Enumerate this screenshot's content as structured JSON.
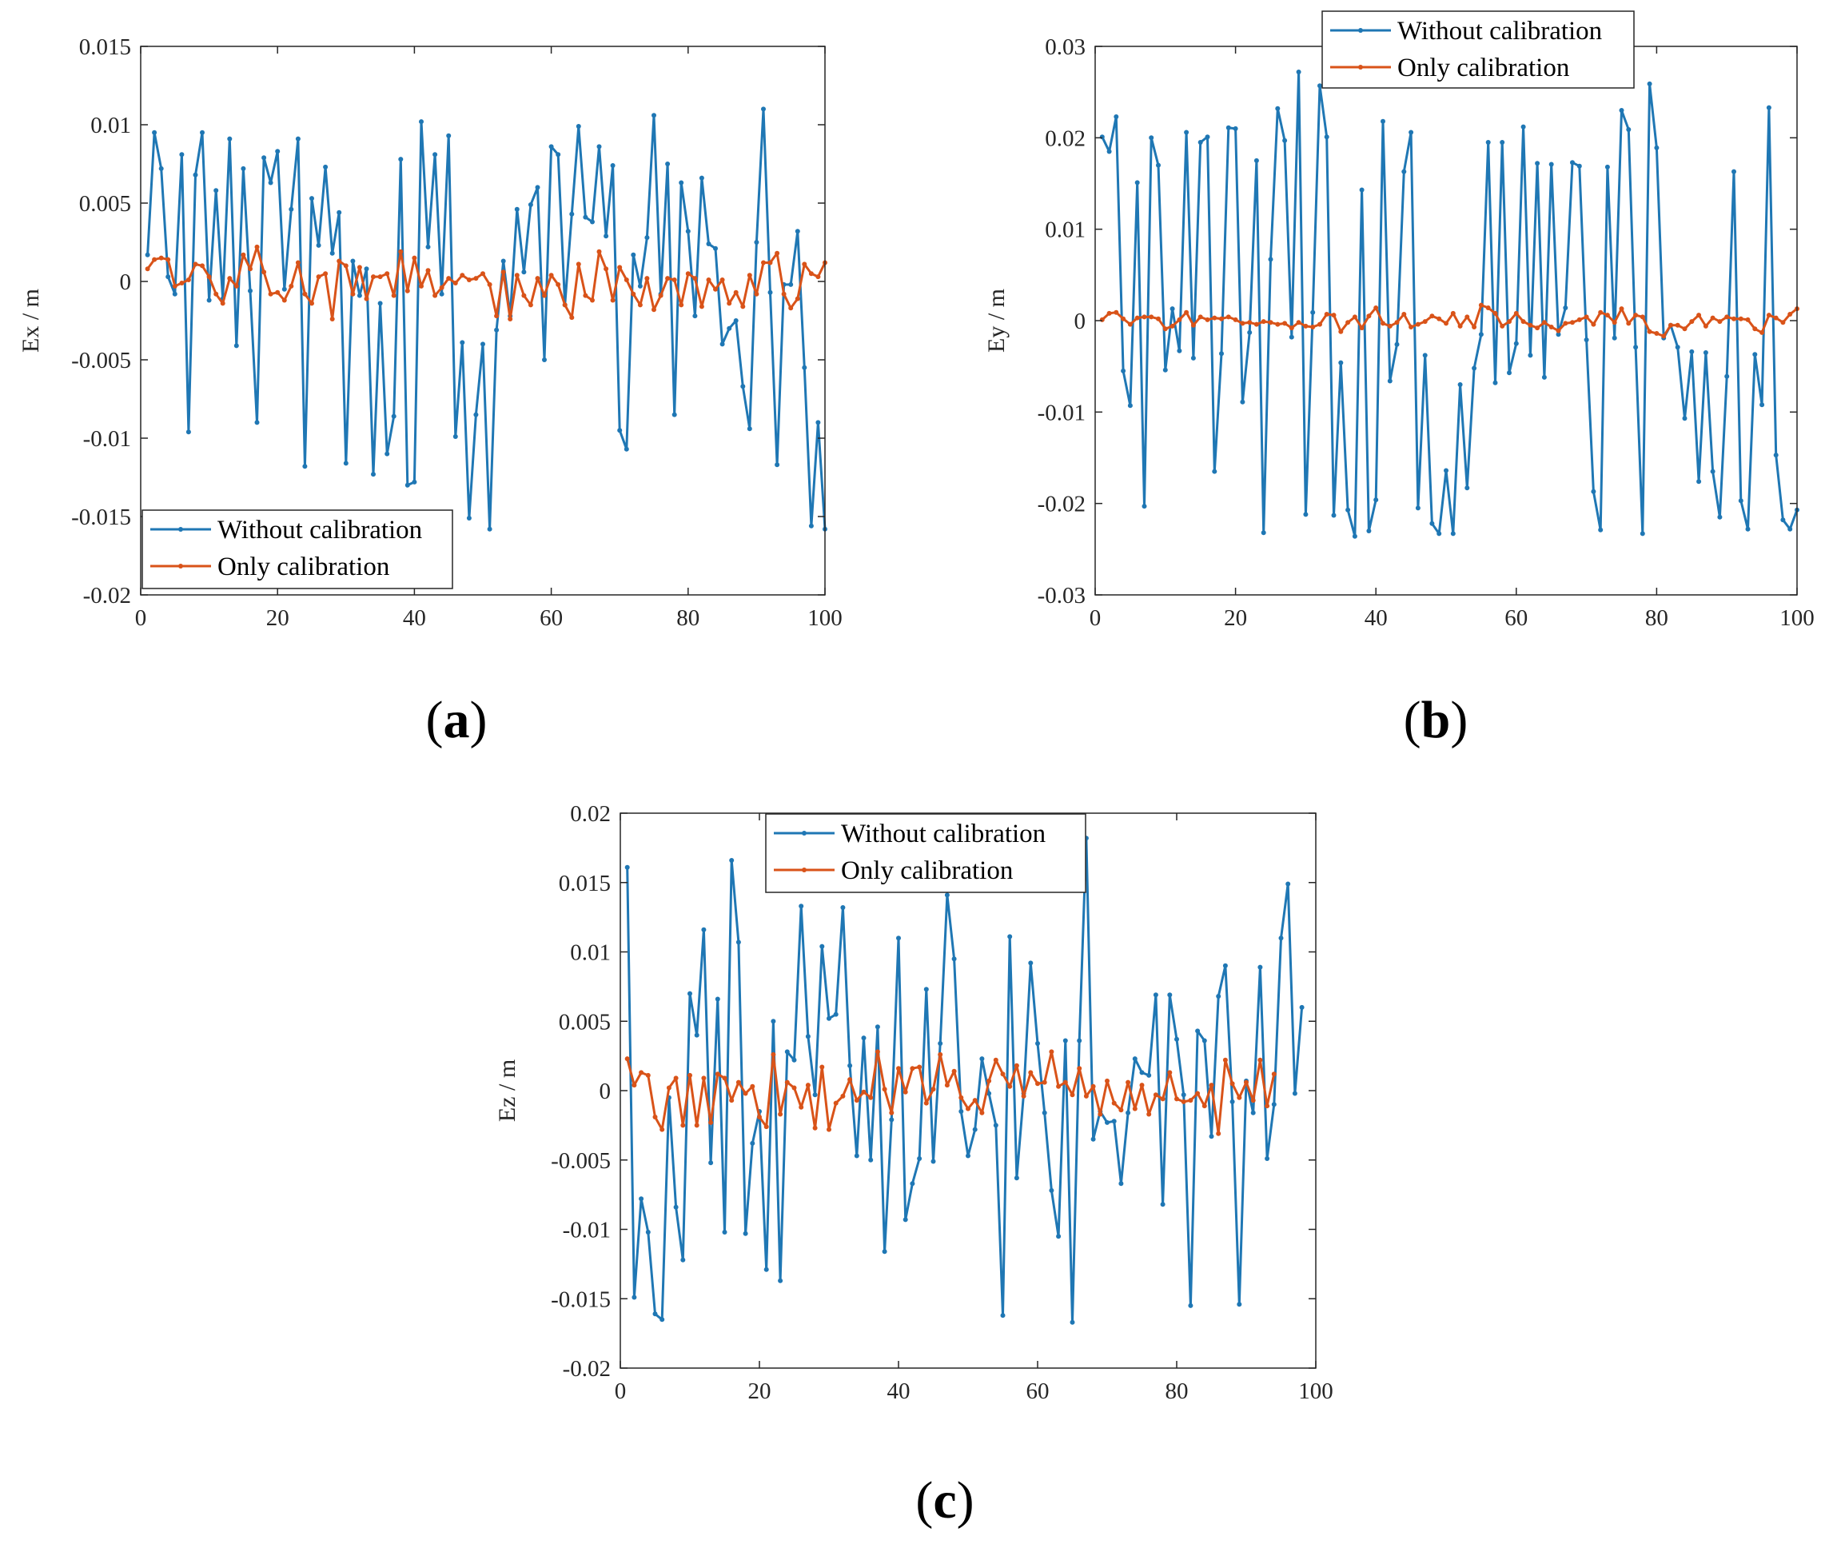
{
  "figure": {
    "panel_labels": [
      "(a)",
      "(b)",
      "(c)"
    ]
  },
  "colors": {
    "without": "#1f77b4",
    "only": "#d95319"
  },
  "chart_data": [
    {
      "type": "line",
      "panel": "(a)",
      "ylabel": "Ex / m",
      "xlim": [
        0,
        100
      ],
      "ylim": [
        -0.02,
        0.015
      ],
      "xticks": [
        0,
        20,
        40,
        60,
        80,
        100
      ],
      "xtick_labels": [
        "0",
        "20",
        "40",
        "60",
        "80",
        "100"
      ],
      "yticks": [
        -0.02,
        -0.015,
        -0.01,
        -0.005,
        0,
        0.005,
        0.01,
        0.015
      ],
      "ytick_labels": [
        "-0.02",
        "-0.015",
        "-0.01",
        "-0.005",
        "0",
        "0.005",
        "0.01",
        "0.015"
      ],
      "legend": {
        "position": "bottom-left",
        "entries": [
          "Without calibration",
          "Only calibration"
        ]
      },
      "series": [
        {
          "name": "Without calibration",
          "values": [
            0.0017,
            0.0095,
            0.0072,
            0.0003,
            -0.0008,
            0.0081,
            -0.0096,
            0.0068,
            0.0095,
            -0.0012,
            0.0058,
            -0.0011,
            0.0091,
            -0.0041,
            0.0072,
            -0.0006,
            -0.009,
            0.0079,
            0.0063,
            0.0083,
            -0.0005,
            0.0046,
            0.0091,
            -0.0118,
            0.0053,
            0.0023,
            0.0073,
            0.0018,
            0.0044,
            -0.0116,
            0.0013,
            -0.0009,
            0.0008,
            -0.0123,
            -0.0014,
            -0.011,
            -0.0086,
            0.0078,
            -0.013,
            -0.0128,
            0.0102,
            0.0022,
            0.0081,
            -0.0008,
            0.0093,
            -0.0099,
            -0.0039,
            -0.0151,
            -0.0085,
            -0.004,
            -0.0158,
            -0.0031,
            0.0013,
            -0.0022,
            0.0046,
            0.0006,
            0.0049,
            0.006,
            -0.005,
            0.0086,
            0.0081,
            -0.0015,
            0.0043,
            0.0099,
            0.0041,
            0.0038,
            0.0086,
            0.0029,
            0.0074,
            -0.0095,
            -0.0107,
            0.0017,
            -0.0003,
            0.0028,
            0.0106,
            -0.0008,
            0.0075,
            -0.0085,
            0.0063,
            0.0032,
            -0.0022,
            0.0066,
            0.0024,
            0.0021,
            -0.004,
            -0.003,
            -0.0025,
            -0.0067,
            -0.0094,
            0.0025,
            0.011,
            -0.0007,
            -0.0117,
            -0.0002,
            -0.0002,
            0.0032,
            -0.0055,
            -0.0156,
            -0.009,
            -0.0158
          ]
        },
        {
          "name": "Only calibration",
          "values": [
            0.0008,
            0.0014,
            0.0015,
            0.0014,
            -0.0003,
            -0.0001,
            0.0001,
            0.0011,
            0.001,
            0.0003,
            -0.0008,
            -0.0014,
            0.0002,
            -0.0003,
            0.0017,
            0.0008,
            0.0022,
            0.0006,
            -0.0008,
            -0.0007,
            -0.0012,
            -0.0003,
            0.0012,
            -0.0008,
            -0.0014,
            0.0003,
            0.0005,
            -0.0024,
            0.0013,
            0.001,
            -0.0008,
            0.0009,
            -0.0011,
            0.0003,
            0.0003,
            0.0005,
            -0.0009,
            0.0019,
            -0.0006,
            0.0015,
            -0.0003,
            0.0007,
            -0.0009,
            -0.0004,
            0.0002,
            -0.0001,
            0.0004,
            0.0001,
            0.0002,
            0.0005,
            -0.0002,
            -0.0022,
            0.0006,
            -0.0024,
            0.0004,
            -0.0009,
            -0.0015,
            0.0002,
            -0.0009,
            0.0004,
            -0.0002,
            -0.0015,
            -0.0023,
            0.0011,
            -0.0009,
            -0.0012,
            0.0019,
            0.0008,
            -0.0012,
            0.0009,
            0.0001,
            -0.0008,
            -0.0015,
            0.0002,
            -0.0018,
            -0.0009,
            0.0002,
            0.0001,
            -0.0015,
            0.0005,
            0.0002,
            -0.0016,
            0.0001,
            -0.0005,
            0.0001,
            -0.0014,
            -0.0007,
            -0.0016,
            0.0004,
            -0.0008,
            0.0012,
            0.0012,
            0.0018,
            -0.0008,
            -0.0017,
            -0.0011,
            0.0011,
            0.0005,
            0.0003,
            0.0012
          ]
        }
      ]
    },
    {
      "type": "line",
      "panel": "(b)",
      "ylabel": "Ey / m",
      "xlim": [
        0,
        100
      ],
      "ylim": [
        -0.03,
        0.03
      ],
      "xticks": [
        0,
        20,
        40,
        60,
        80,
        100
      ],
      "xtick_labels": [
        "0",
        "20",
        "40",
        "60",
        "80",
        "100"
      ],
      "yticks": [
        -0.03,
        -0.02,
        -0.01,
        0,
        0.01,
        0.02,
        0.03
      ],
      "ytick_labels": [
        "-0.03",
        "-0.02",
        "-0.01",
        "0",
        "0.01",
        "0.02",
        "0.03"
      ],
      "legend": {
        "position": "top-center",
        "entries": [
          "Without calibration",
          "Only calibration"
        ]
      },
      "series": [
        {
          "name": "Without calibration",
          "values": [
            0.0201,
            0.0185,
            0.0223,
            -0.0055,
            -0.0093,
            0.0151,
            -0.0203,
            0.02,
            0.017,
            -0.0054,
            0.0013,
            -0.0033,
            0.0206,
            -0.0041,
            0.0195,
            0.0201,
            -0.0165,
            -0.0036,
            0.0211,
            0.021,
            -0.0089,
            -0.0013,
            0.0175,
            -0.0232,
            0.0067,
            0.0232,
            0.0197,
            -0.0018,
            0.0272,
            -0.0212,
            0.0009,
            0.0257,
            0.0201,
            -0.0213,
            -0.0046,
            -0.0207,
            -0.0236,
            0.0143,
            -0.023,
            -0.0196,
            0.0218,
            -0.0066,
            -0.0026,
            0.0163,
            0.0206,
            -0.0205,
            -0.0038,
            -0.0222,
            -0.0233,
            -0.0164,
            -0.0233,
            -0.007,
            -0.0183,
            -0.0052,
            -0.0015,
            0.0195,
            -0.0068,
            0.0195,
            -0.0057,
            -0.0025,
            0.0212,
            -0.0038,
            0.0172,
            -0.0062,
            0.0171,
            -0.0015,
            0.0014,
            0.0173,
            0.0169,
            -0.0021,
            -0.0187,
            -0.0229,
            0.0168,
            -0.0019,
            0.023,
            0.0209,
            -0.0029,
            -0.0233,
            0.0259,
            0.0189,
            -0.0019,
            -0.0005,
            -0.0029,
            -0.0107,
            -0.0034,
            -0.0176,
            -0.0035,
            -0.0165,
            -0.0215,
            -0.0061,
            0.0163,
            -0.0197,
            -0.0228,
            -0.0037,
            -0.0092,
            0.0233,
            -0.0147,
            -0.0218,
            -0.0228,
            -0.0207
          ]
        },
        {
          "name": "Only calibration",
          "values": [
            0.0001,
            0.0008,
            0.0009,
            0.0002,
            -0.0004,
            0.0003,
            0.0004,
            0.0004,
            0.0002,
            -0.0009,
            -0.0006,
            0.0001,
            0.0009,
            -0.0005,
            0.0004,
            0.0001,
            0.0003,
            0.0002,
            0.0004,
            0.0001,
            -0.0003,
            -0.0002,
            -0.0004,
            -0.0001,
            -0.0002,
            -0.0004,
            -0.0003,
            -0.0008,
            -0.0002,
            -0.0006,
            -0.0007,
            -0.0004,
            0.0007,
            0.0006,
            -0.0012,
            -0.0002,
            0.0004,
            -0.0008,
            0.0005,
            0.0014,
            -0.0003,
            -0.0006,
            -0.0002,
            0.0007,
            -0.0007,
            -0.0004,
            -0.0001,
            0.0005,
            0.0002,
            -0.0003,
            0.0008,
            -0.0006,
            0.0004,
            -0.0007,
            0.0017,
            0.0014,
            0.0008,
            -0.0006,
            -0.0001,
            0.0008,
            -0.0001,
            -0.0005,
            -0.0008,
            -0.0002,
            -0.0007,
            -0.0011,
            -0.0003,
            -0.0002,
            0.0001,
            0.0004,
            -0.0004,
            0.0009,
            0.0006,
            -0.0002,
            0.0013,
            -0.0003,
            0.0006,
            0.0004,
            -0.0012,
            -0.0014,
            -0.0017,
            -0.0005,
            -0.0005,
            -0.0009,
            -0.0001,
            0.0006,
            -0.0006,
            0.0003,
            -0.0001,
            0.0004,
            0.0002,
            0.0002,
            0.0001,
            -0.0009,
            -0.0013,
            0.0006,
            0.0003,
            -0.0002,
            0.0007,
            0.0013
          ]
        }
      ]
    },
    {
      "type": "line",
      "panel": "(c)",
      "ylabel": "Ez / m",
      "xlim": [
        0,
        100
      ],
      "ylim": [
        -0.02,
        0.02
      ],
      "xticks": [
        0,
        20,
        40,
        60,
        80,
        100
      ],
      "xtick_labels": [
        "0",
        "20",
        "40",
        "60",
        "80",
        "100"
      ],
      "yticks": [
        -0.02,
        -0.015,
        -0.01,
        -0.005,
        0,
        0.005,
        0.01,
        0.015,
        0.02
      ],
      "ytick_labels": [
        "-0.02",
        "-0.015",
        "-0.01",
        "-0.005",
        "0",
        "0.005",
        "0.01",
        "0.015",
        "0.02"
      ],
      "legend": {
        "position": "top-center",
        "entries": [
          "Without calibration",
          "Only calibration"
        ]
      },
      "series": [
        {
          "name": "Without calibration",
          "values": [
            0.0161,
            -0.0149,
            -0.0078,
            -0.0102,
            -0.0161,
            -0.0165,
            -0.0005,
            -0.0084,
            -0.0122,
            0.007,
            0.004,
            0.0116,
            -0.0052,
            0.0066,
            -0.0102,
            0.0166,
            0.0107,
            -0.0103,
            -0.0038,
            -0.0015,
            -0.0129,
            0.005,
            -0.0137,
            0.0028,
            0.0022,
            0.0133,
            0.0039,
            -0.0003,
            0.0104,
            0.0052,
            0.0055,
            0.0132,
            0.0018,
            -0.0047,
            0.0038,
            -0.005,
            0.0046,
            -0.0116,
            -0.0021,
            0.011,
            -0.0093,
            -0.0067,
            -0.0049,
            0.0073,
            -0.0051,
            0.0034,
            0.0141,
            0.0095,
            -0.0015,
            -0.0047,
            -0.0028,
            0.0023,
            -0.0002,
            -0.0025,
            -0.0162,
            0.0111,
            -0.0063,
            -0.0002,
            0.0092,
            0.0034,
            -0.0016,
            -0.0072,
            -0.0105,
            0.0036,
            -0.0167,
            0.0036,
            0.0182,
            -0.0035,
            -0.0015,
            -0.0023,
            -0.0022,
            -0.0067,
            -0.0016,
            0.0023,
            0.0013,
            0.0011,
            0.0069,
            -0.0082,
            0.0069,
            0.0037,
            -0.0003,
            -0.0155,
            0.0043,
            0.0036,
            -0.0033,
            0.0068,
            0.009,
            -0.0008,
            -0.0154,
            0.0007,
            -0.0016,
            0.0089,
            -0.0049,
            -0.001,
            0.011,
            0.0149,
            -0.0002,
            0.006
          ]
        },
        {
          "name": "Only calibration",
          "values": [
            0.0023,
            0.0004,
            0.0013,
            0.0011,
            -0.0019,
            -0.0028,
            0.0002,
            0.0009,
            -0.0025,
            0.0011,
            -0.0025,
            0.0009,
            -0.0023,
            0.0012,
            0.0009,
            -0.0007,
            0.0006,
            -0.0002,
            0.0003,
            -0.0019,
            -0.0026,
            0.0026,
            -0.0017,
            0.0006,
            0.0002,
            -0.0012,
            0.0004,
            -0.0027,
            0.0017,
            -0.0028,
            -0.0009,
            -0.0004,
            0.0008,
            -0.0007,
            -0.0001,
            -0.0005,
            0.0028,
            0.0001,
            -0.0016,
            0.0016,
            -0.0001,
            0.0016,
            0.0017,
            -0.0009,
            0.0001,
            0.0026,
            0.0004,
            0.0014,
            -0.0005,
            -0.0013,
            -0.0007,
            -0.0016,
            0.0007,
            0.0022,
            0.0012,
            0.0003,
            0.0018,
            -0.0004,
            0.0013,
            0.0005,
            0.0006,
            0.0028,
            0.0003,
            0.0006,
            -0.0003,
            0.0016,
            -0.0004,
            0.0003,
            -0.0017,
            0.0007,
            -0.0009,
            -0.0014,
            0.0006,
            -0.0013,
            0.0004,
            -0.0017,
            -0.0003,
            -0.0006,
            0.0013,
            -0.0006,
            -0.0008,
            -0.0007,
            -0.0002,
            -0.0011,
            0.0004,
            -0.0031,
            0.0022,
            0.0005,
            -0.0005,
            0.0006,
            -0.0007,
            0.0022,
            -0.0011,
            0.0012
          ]
        }
      ]
    }
  ]
}
